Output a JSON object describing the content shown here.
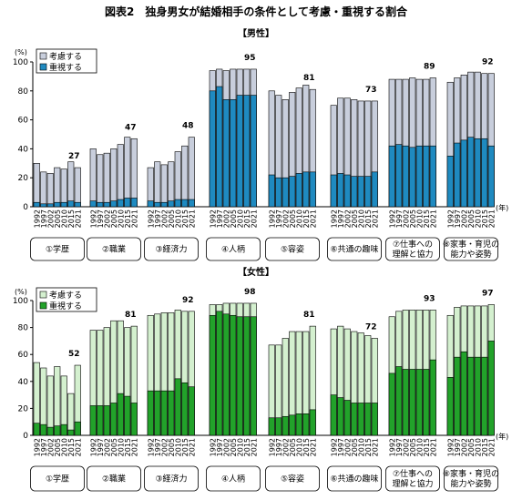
{
  "figure_title": "図表2　独身男女が結婚相手の条件として考慮・重視する割合",
  "colors": {
    "consider": "#c8cedc",
    "emphasize_male": "#1f8ac0",
    "consider_female": "#d4f0cf",
    "emphasize_female": "#22a22a",
    "outline": "#000000"
  },
  "chart_data": [
    {
      "type": "bar",
      "title": "【男性】",
      "y_unit": "(%)",
      "x_unit": "(年)",
      "ylim": [
        0,
        100
      ],
      "yticks": [
        0,
        20,
        40,
        60,
        80,
        100
      ],
      "years": [
        "1992",
        "1997",
        "2002",
        "2005",
        "2010",
        "2015",
        "2021"
      ],
      "legend": [
        "考慮する",
        "重視する"
      ],
      "groups": [
        {
          "label": [
            "①学歴"
          ],
          "total": [
            30,
            24,
            23,
            27,
            26,
            31,
            27
          ],
          "emphasize": [
            3,
            2,
            2,
            3,
            3,
            4,
            3
          ],
          "top_label": "27"
        },
        {
          "label": [
            "②職業"
          ],
          "total": [
            40,
            36,
            37,
            40,
            43,
            48,
            47
          ],
          "emphasize": [
            4,
            3,
            3,
            4,
            5,
            6,
            6
          ],
          "top_label": "47"
        },
        {
          "label": [
            "③経済力"
          ],
          "total": [
            27,
            31,
            29,
            31,
            38,
            42,
            48
          ],
          "emphasize": [
            4,
            3,
            3,
            4,
            5,
            5,
            5
          ],
          "top_label": "48"
        },
        {
          "label": [
            "④人柄"
          ],
          "total": [
            94,
            95,
            94,
            95,
            95,
            95,
            95
          ],
          "emphasize": [
            80,
            83,
            74,
            74,
            77,
            77,
            77
          ],
          "top_label": "95"
        },
        {
          "label": [
            "⑤容姿"
          ],
          "total": [
            80,
            77,
            74,
            79,
            82,
            84,
            81
          ],
          "emphasize": [
            22,
            20,
            20,
            21,
            23,
            24,
            24
          ],
          "top_label": "81"
        },
        {
          "label": [
            "⑥共通の趣味"
          ],
          "total": [
            70,
            75,
            75,
            74,
            73,
            73,
            73
          ],
          "emphasize": [
            22,
            23,
            22,
            21,
            21,
            21,
            24
          ],
          "top_label": "73"
        },
        {
          "label": [
            "⑦仕事への",
            "理解と協力"
          ],
          "total": [
            88,
            88,
            88,
            89,
            88,
            88,
            89
          ],
          "emphasize": [
            42,
            43,
            42,
            41,
            42,
            42,
            42
          ],
          "top_label": "89"
        },
        {
          "label": [
            "⑧家事・育児の",
            "能力や姿勢"
          ],
          "total": [
            86,
            89,
            91,
            93,
            93,
            92,
            92
          ],
          "emphasize": [
            35,
            44,
            46,
            48,
            47,
            47,
            42
          ],
          "top_label": "92"
        }
      ]
    },
    {
      "type": "bar",
      "title": "【女性】",
      "y_unit": "(%)",
      "x_unit": "(年)",
      "ylim": [
        0,
        100
      ],
      "yticks": [
        0,
        20,
        40,
        60,
        80,
        100
      ],
      "years": [
        "1992",
        "1997",
        "2002",
        "2005",
        "2010",
        "2015",
        "2021"
      ],
      "legend": [
        "考慮する",
        "重視する"
      ],
      "groups": [
        {
          "label": [
            "①学歴"
          ],
          "total": [
            54,
            50,
            44,
            51,
            44,
            31,
            52
          ],
          "emphasize": [
            9,
            8,
            6,
            7,
            8,
            4,
            10
          ],
          "top_label": "52"
        },
        {
          "label": [
            "②職業"
          ],
          "total": [
            78,
            78,
            80,
            85,
            85,
            80,
            81
          ],
          "emphasize": [
            22,
            22,
            22,
            24,
            31,
            29,
            24
          ],
          "top_label": "81"
        },
        {
          "label": [
            "③経済力"
          ],
          "total": [
            89,
            90,
            91,
            91,
            93,
            92,
            92
          ],
          "emphasize": [
            33,
            33,
            33,
            33,
            42,
            39,
            36
          ],
          "top_label": "92"
        },
        {
          "label": [
            "④人柄"
          ],
          "total": [
            97,
            97,
            98,
            98,
            98,
            98,
            98
          ],
          "emphasize": [
            89,
            92,
            90,
            89,
            88,
            88,
            88
          ],
          "top_label": "98"
        },
        {
          "label": [
            "⑤容姿"
          ],
          "total": [
            67,
            67,
            72,
            77,
            77,
            77,
            81
          ],
          "emphasize": [
            13,
            13,
            14,
            15,
            16,
            16,
            19
          ],
          "top_label": "81"
        },
        {
          "label": [
            "⑥共通の趣味"
          ],
          "total": [
            79,
            81,
            79,
            77,
            76,
            74,
            72
          ],
          "emphasize": [
            30,
            28,
            26,
            24,
            24,
            24,
            24
          ],
          "top_label": "72"
        },
        {
          "label": [
            "⑦仕事への",
            "理解と協力"
          ],
          "total": [
            88,
            92,
            93,
            93,
            93,
            93,
            93
          ],
          "emphasize": [
            46,
            51,
            49,
            49,
            49,
            49,
            56
          ],
          "top_label": "93"
        },
        {
          "label": [
            "⑧家事・育児の",
            "能力や姿勢"
          ],
          "total": [
            89,
            95,
            96,
            96,
            96,
            96,
            97
          ],
          "emphasize": [
            43,
            58,
            62,
            58,
            58,
            58,
            70
          ],
          "top_label": "97"
        }
      ]
    }
  ]
}
